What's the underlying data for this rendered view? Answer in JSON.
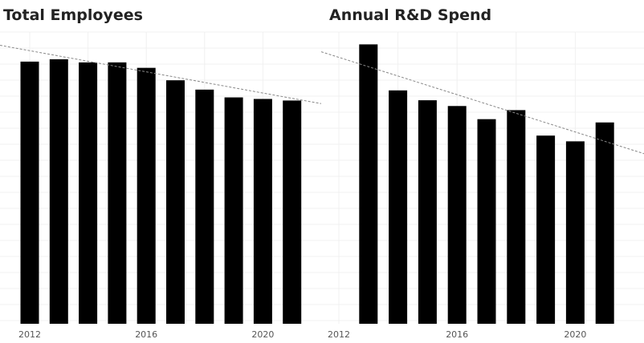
{
  "chart_data": [
    {
      "type": "bar",
      "title": "Total Employees",
      "xlabel": "",
      "ylabel": "",
      "categories": [
        "2012",
        "2013",
        "2014",
        "2015",
        "2016",
        "2017",
        "2018",
        "2019",
        "2020",
        "2021"
      ],
      "values": [
        337,
        340,
        336,
        336,
        329,
        313,
        301,
        291,
        289,
        287
      ],
      "ylim": [
        0,
        375
      ],
      "x_tick_labels": [
        "2012",
        "2016",
        "2020"
      ],
      "trendline": {
        "style": "dashed",
        "start": 358,
        "end": 283
      },
      "bar_color": "#000000",
      "grid": true,
      "legend": "none"
    },
    {
      "type": "bar",
      "title": "Annual R&D Spend",
      "xlabel": "",
      "ylabel": "",
      "categories": [
        "2013",
        "2014",
        "2015",
        "2016",
        "2017",
        "2018",
        "2019",
        "2020",
        "2021"
      ],
      "values": [
        340,
        284,
        272,
        265,
        249,
        260,
        229,
        222,
        245
      ],
      "ylim": [
        0,
        355
      ],
      "x_tick_labels": [
        "2012",
        "2016",
        "2020"
      ],
      "trendline": {
        "style": "dashed",
        "start": 331,
        "end": 207
      },
      "bar_color": "#000000",
      "grid": true,
      "legend": "none"
    }
  ]
}
